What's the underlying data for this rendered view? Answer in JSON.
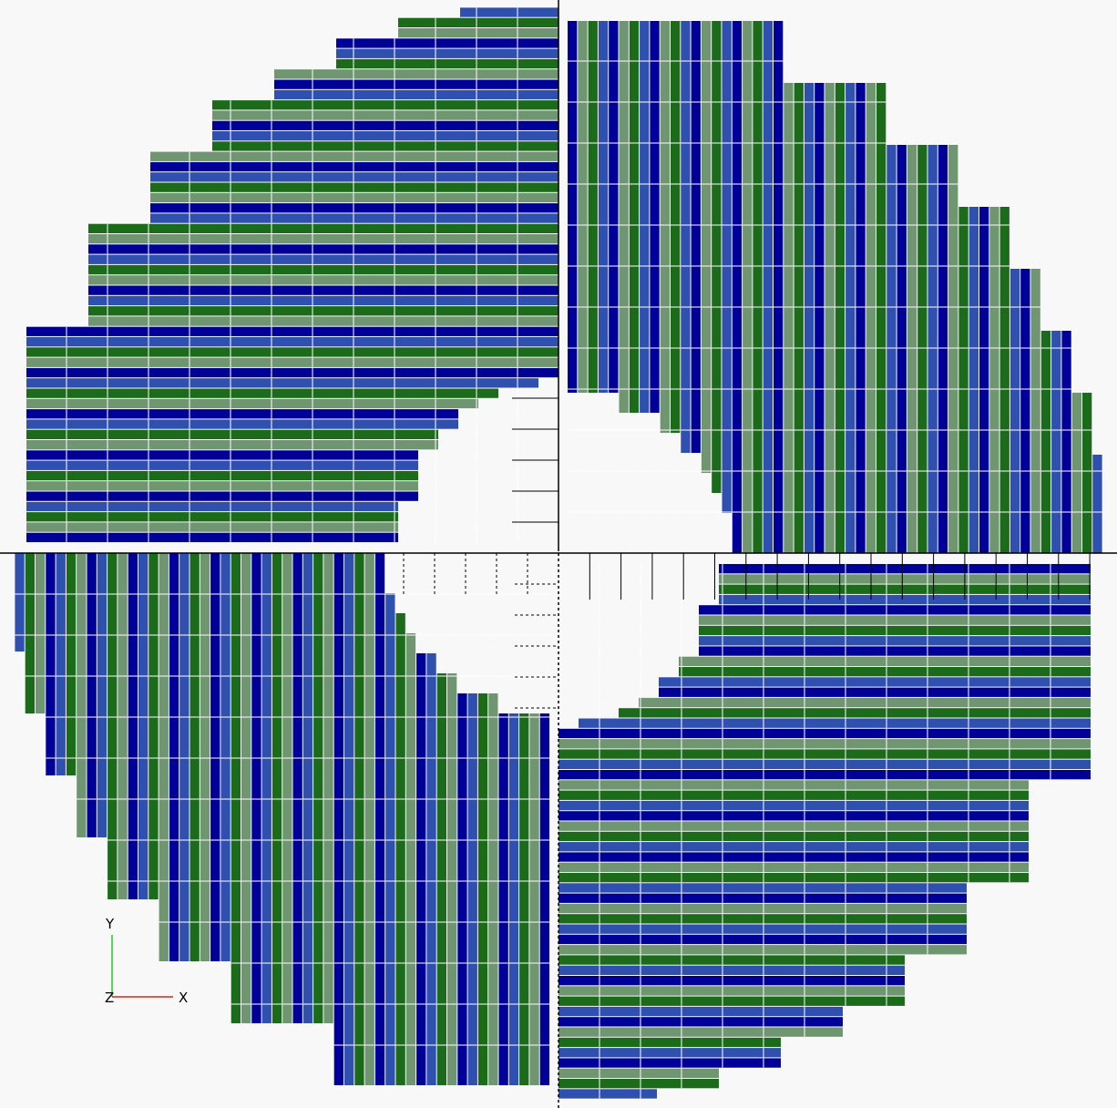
{
  "viewport": {
    "background": "#f8f8f8",
    "palette": {
      "navy": "#000099",
      "royal_blue": "#3050b0",
      "forest_green": "#1b6b1b",
      "sage_green": "#6f9670",
      "grid_line": "#ffffff",
      "axis_line": "#000000"
    },
    "model": {
      "description_id": "rotated-segmented-tiles",
      "quadrants": [
        "top-left",
        "top-right",
        "bottom-left",
        "bottom-right"
      ]
    },
    "axes_gizmo": {
      "y_label": "Y",
      "x_label": "X",
      "z_label": "Z",
      "y_color": "#22cc22",
      "x_color": "#dd2222",
      "z_color": "#000000"
    }
  }
}
